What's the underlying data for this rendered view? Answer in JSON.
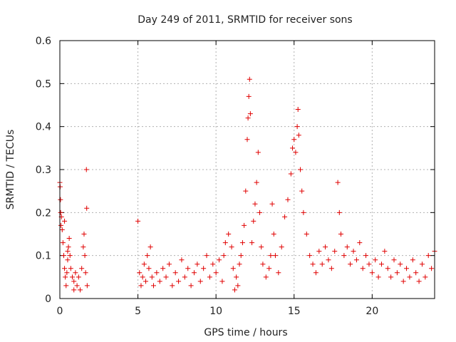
{
  "chart_data": {
    "type": "scatter",
    "title": "Day 249 of 2011, SRMTID for receiver sons",
    "xlabel": "GPS time / hours",
    "ylabel": "SRMTID / TECUs",
    "xlim": [
      0,
      24
    ],
    "ylim": [
      0,
      0.6
    ],
    "xticks": [
      0,
      5,
      10,
      15,
      20
    ],
    "yticks": [
      0,
      0.1,
      0.2,
      0.3,
      0.4,
      0.5,
      0.6
    ],
    "xtick_labels": [
      "0",
      "5",
      "10",
      "15",
      "20"
    ],
    "ytick_labels": [
      "0",
      "0.1",
      "0.2",
      "0.3",
      "0.4",
      "0.5",
      "0.6"
    ],
    "grid": true,
    "marker": "+",
    "color": "#e00000",
    "series": [
      {
        "name": "SRMTID",
        "points": [
          [
            0.0,
            0.27
          ],
          [
            0.02,
            0.26
          ],
          [
            0.04,
            0.23
          ],
          [
            0.05,
            0.2
          ],
          [
            0.07,
            0.17
          ],
          [
            0.1,
            0.19
          ],
          [
            0.15,
            0.16
          ],
          [
            0.2,
            0.13
          ],
          [
            0.25,
            0.1
          ],
          [
            0.3,
            0.07
          ],
          [
            0.35,
            0.05
          ],
          [
            0.4,
            0.03
          ],
          [
            0.45,
            0.06
          ],
          [
            0.5,
            0.09
          ],
          [
            0.55,
            0.12
          ],
          [
            0.6,
            0.14
          ],
          [
            0.65,
            0.1
          ],
          [
            0.7,
            0.07
          ],
          [
            0.8,
            0.05
          ],
          [
            0.9,
            0.04
          ],
          [
            1.0,
            0.06
          ],
          [
            1.1,
            0.03
          ],
          [
            1.2,
            0.05
          ],
          [
            1.3,
            0.02
          ],
          [
            1.4,
            0.07
          ],
          [
            1.5,
            0.12
          ],
          [
            1.55,
            0.15
          ],
          [
            1.6,
            0.1
          ],
          [
            1.65,
            0.06
          ],
          [
            1.7,
            0.3
          ],
          [
            1.72,
            0.21
          ],
          [
            1.75,
            0.03
          ],
          [
            0.3,
            0.18
          ],
          [
            0.5,
            0.11
          ],
          [
            0.9,
            0.02
          ],
          [
            5.0,
            0.18
          ],
          [
            5.1,
            0.06
          ],
          [
            5.2,
            0.03
          ],
          [
            5.3,
            0.05
          ],
          [
            5.4,
            0.08
          ],
          [
            5.5,
            0.04
          ],
          [
            5.6,
            0.1
          ],
          [
            5.7,
            0.07
          ],
          [
            5.8,
            0.12
          ],
          [
            5.9,
            0.05
          ],
          [
            6.0,
            0.03
          ],
          [
            6.2,
            0.06
          ],
          [
            6.4,
            0.04
          ],
          [
            6.6,
            0.07
          ],
          [
            6.8,
            0.05
          ],
          [
            7.0,
            0.08
          ],
          [
            7.2,
            0.03
          ],
          [
            7.4,
            0.06
          ],
          [
            7.6,
            0.04
          ],
          [
            7.8,
            0.09
          ],
          [
            8.0,
            0.05
          ],
          [
            8.2,
            0.07
          ],
          [
            8.4,
            0.03
          ],
          [
            8.6,
            0.06
          ],
          [
            8.8,
            0.08
          ],
          [
            9.0,
            0.04
          ],
          [
            9.2,
            0.07
          ],
          [
            9.4,
            0.1
          ],
          [
            9.6,
            0.05
          ],
          [
            9.8,
            0.08
          ],
          [
            10.0,
            0.06
          ],
          [
            10.2,
            0.09
          ],
          [
            10.4,
            0.04
          ],
          [
            10.5,
            0.1
          ],
          [
            10.6,
            0.13
          ],
          [
            10.8,
            0.15
          ],
          [
            11.0,
            0.12
          ],
          [
            11.1,
            0.07
          ],
          [
            11.2,
            0.02
          ],
          [
            11.3,
            0.05
          ],
          [
            11.4,
            0.03
          ],
          [
            11.5,
            0.08
          ],
          [
            11.6,
            0.1
          ],
          [
            11.7,
            0.13
          ],
          [
            11.8,
            0.17
          ],
          [
            11.9,
            0.25
          ],
          [
            12.0,
            0.37
          ],
          [
            12.05,
            0.42
          ],
          [
            12.1,
            0.47
          ],
          [
            12.15,
            0.51
          ],
          [
            12.2,
            0.43
          ],
          [
            12.3,
            0.13
          ],
          [
            12.4,
            0.18
          ],
          [
            12.5,
            0.22
          ],
          [
            12.6,
            0.27
          ],
          [
            12.7,
            0.34
          ],
          [
            12.8,
            0.2
          ],
          [
            12.9,
            0.12
          ],
          [
            13.0,
            0.08
          ],
          [
            13.2,
            0.05
          ],
          [
            13.4,
            0.07
          ],
          [
            13.5,
            0.1
          ],
          [
            13.6,
            0.22
          ],
          [
            13.7,
            0.15
          ],
          [
            13.8,
            0.1
          ],
          [
            14.0,
            0.06
          ],
          [
            14.2,
            0.12
          ],
          [
            14.4,
            0.19
          ],
          [
            14.6,
            0.23
          ],
          [
            14.8,
            0.29
          ],
          [
            14.9,
            0.35
          ],
          [
            15.0,
            0.37
          ],
          [
            15.1,
            0.34
          ],
          [
            15.2,
            0.4
          ],
          [
            15.25,
            0.44
          ],
          [
            15.3,
            0.38
          ],
          [
            15.4,
            0.3
          ],
          [
            15.5,
            0.25
          ],
          [
            15.6,
            0.2
          ],
          [
            15.8,
            0.15
          ],
          [
            16.0,
            0.1
          ],
          [
            16.2,
            0.08
          ],
          [
            16.4,
            0.06
          ],
          [
            16.6,
            0.11
          ],
          [
            16.8,
            0.08
          ],
          [
            17.0,
            0.12
          ],
          [
            17.2,
            0.09
          ],
          [
            17.4,
            0.07
          ],
          [
            17.6,
            0.11
          ],
          [
            17.8,
            0.27
          ],
          [
            17.9,
            0.2
          ],
          [
            18.0,
            0.15
          ],
          [
            18.2,
            0.1
          ],
          [
            18.4,
            0.12
          ],
          [
            18.6,
            0.08
          ],
          [
            18.8,
            0.11
          ],
          [
            19.0,
            0.09
          ],
          [
            19.2,
            0.13
          ],
          [
            19.4,
            0.07
          ],
          [
            19.6,
            0.1
          ],
          [
            19.8,
            0.08
          ],
          [
            20.0,
            0.06
          ],
          [
            20.2,
            0.09
          ],
          [
            20.4,
            0.05
          ],
          [
            20.6,
            0.08
          ],
          [
            20.8,
            0.11
          ],
          [
            21.0,
            0.07
          ],
          [
            21.2,
            0.05
          ],
          [
            21.4,
            0.09
          ],
          [
            21.6,
            0.06
          ],
          [
            21.8,
            0.08
          ],
          [
            22.0,
            0.04
          ],
          [
            22.2,
            0.07
          ],
          [
            22.4,
            0.05
          ],
          [
            22.6,
            0.09
          ],
          [
            22.8,
            0.06
          ],
          [
            23.0,
            0.04
          ],
          [
            23.2,
            0.08
          ],
          [
            23.4,
            0.05
          ],
          [
            23.6,
            0.1
          ],
          [
            23.8,
            0.07
          ],
          [
            24.0,
            0.11
          ]
        ]
      }
    ]
  }
}
